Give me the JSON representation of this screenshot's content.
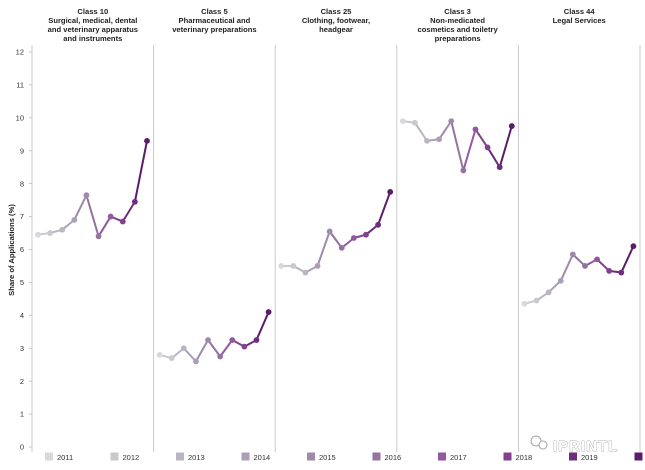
{
  "chart_data": {
    "type": "line",
    "ylabel": "Share of Applications (%)",
    "ylim": [
      0,
      12
    ],
    "yticks": [
      0,
      1,
      2,
      3,
      4,
      5,
      6,
      7,
      8,
      9,
      10,
      11,
      12
    ],
    "grid": false,
    "legend_position": "bottom",
    "legend": [
      {
        "label": "2011",
        "color": "#d9d8dc"
      },
      {
        "label": "2012",
        "color": "#cbc7cf"
      },
      {
        "label": "2013",
        "color": "#bbb4c3"
      },
      {
        "label": "2014",
        "color": "#ab9fb6"
      },
      {
        "label": "2015",
        "color": "#9f8aab"
      },
      {
        "label": "2016",
        "color": "#93739f"
      },
      {
        "label": "2017",
        "color": "#9359a0"
      },
      {
        "label": "2018",
        "color": "#81418e"
      },
      {
        "label": "2019",
        "color": "#6d2d7f"
      },
      {
        "label": "",
        "color": "#5a1c6b"
      }
    ],
    "panels": [
      {
        "title": "Class 10",
        "subtitle_lines": [
          "Surgical, medical, dental",
          "and veterinary apparatus",
          "and instruments"
        ],
        "values": [
          6.45,
          6.5,
          6.6,
          6.9,
          7.65,
          6.4,
          7.0,
          6.85,
          7.45,
          9.3
        ]
      },
      {
        "title": "Class 5",
        "subtitle_lines": [
          "Pharmaceutical and",
          "veterinary preparations"
        ],
        "values": [
          2.8,
          2.7,
          3.0,
          2.6,
          3.25,
          2.75,
          3.25,
          3.05,
          3.25,
          4.1
        ]
      },
      {
        "title": "Class 25",
        "subtitle_lines": [
          "Clothing, footwear,",
          "headgear"
        ],
        "values": [
          5.5,
          5.5,
          5.3,
          5.5,
          6.55,
          6.05,
          6.35,
          6.45,
          6.75,
          7.75
        ]
      },
      {
        "title": "Class 3",
        "subtitle_lines": [
          "Non-medicated",
          "cosmetics and toiletry",
          "preparations"
        ],
        "values": [
          9.9,
          9.85,
          9.3,
          9.35,
          9.9,
          8.4,
          9.65,
          9.1,
          8.5,
          9.75
        ]
      },
      {
        "title": "Class 44",
        "subtitle_lines": [
          "Legal Services"
        ],
        "values": [
          4.35,
          4.45,
          4.7,
          5.05,
          5.85,
          5.5,
          5.7,
          5.35,
          5.3,
          6.1
        ]
      }
    ]
  },
  "watermark": {
    "text": "IPRINTL"
  }
}
